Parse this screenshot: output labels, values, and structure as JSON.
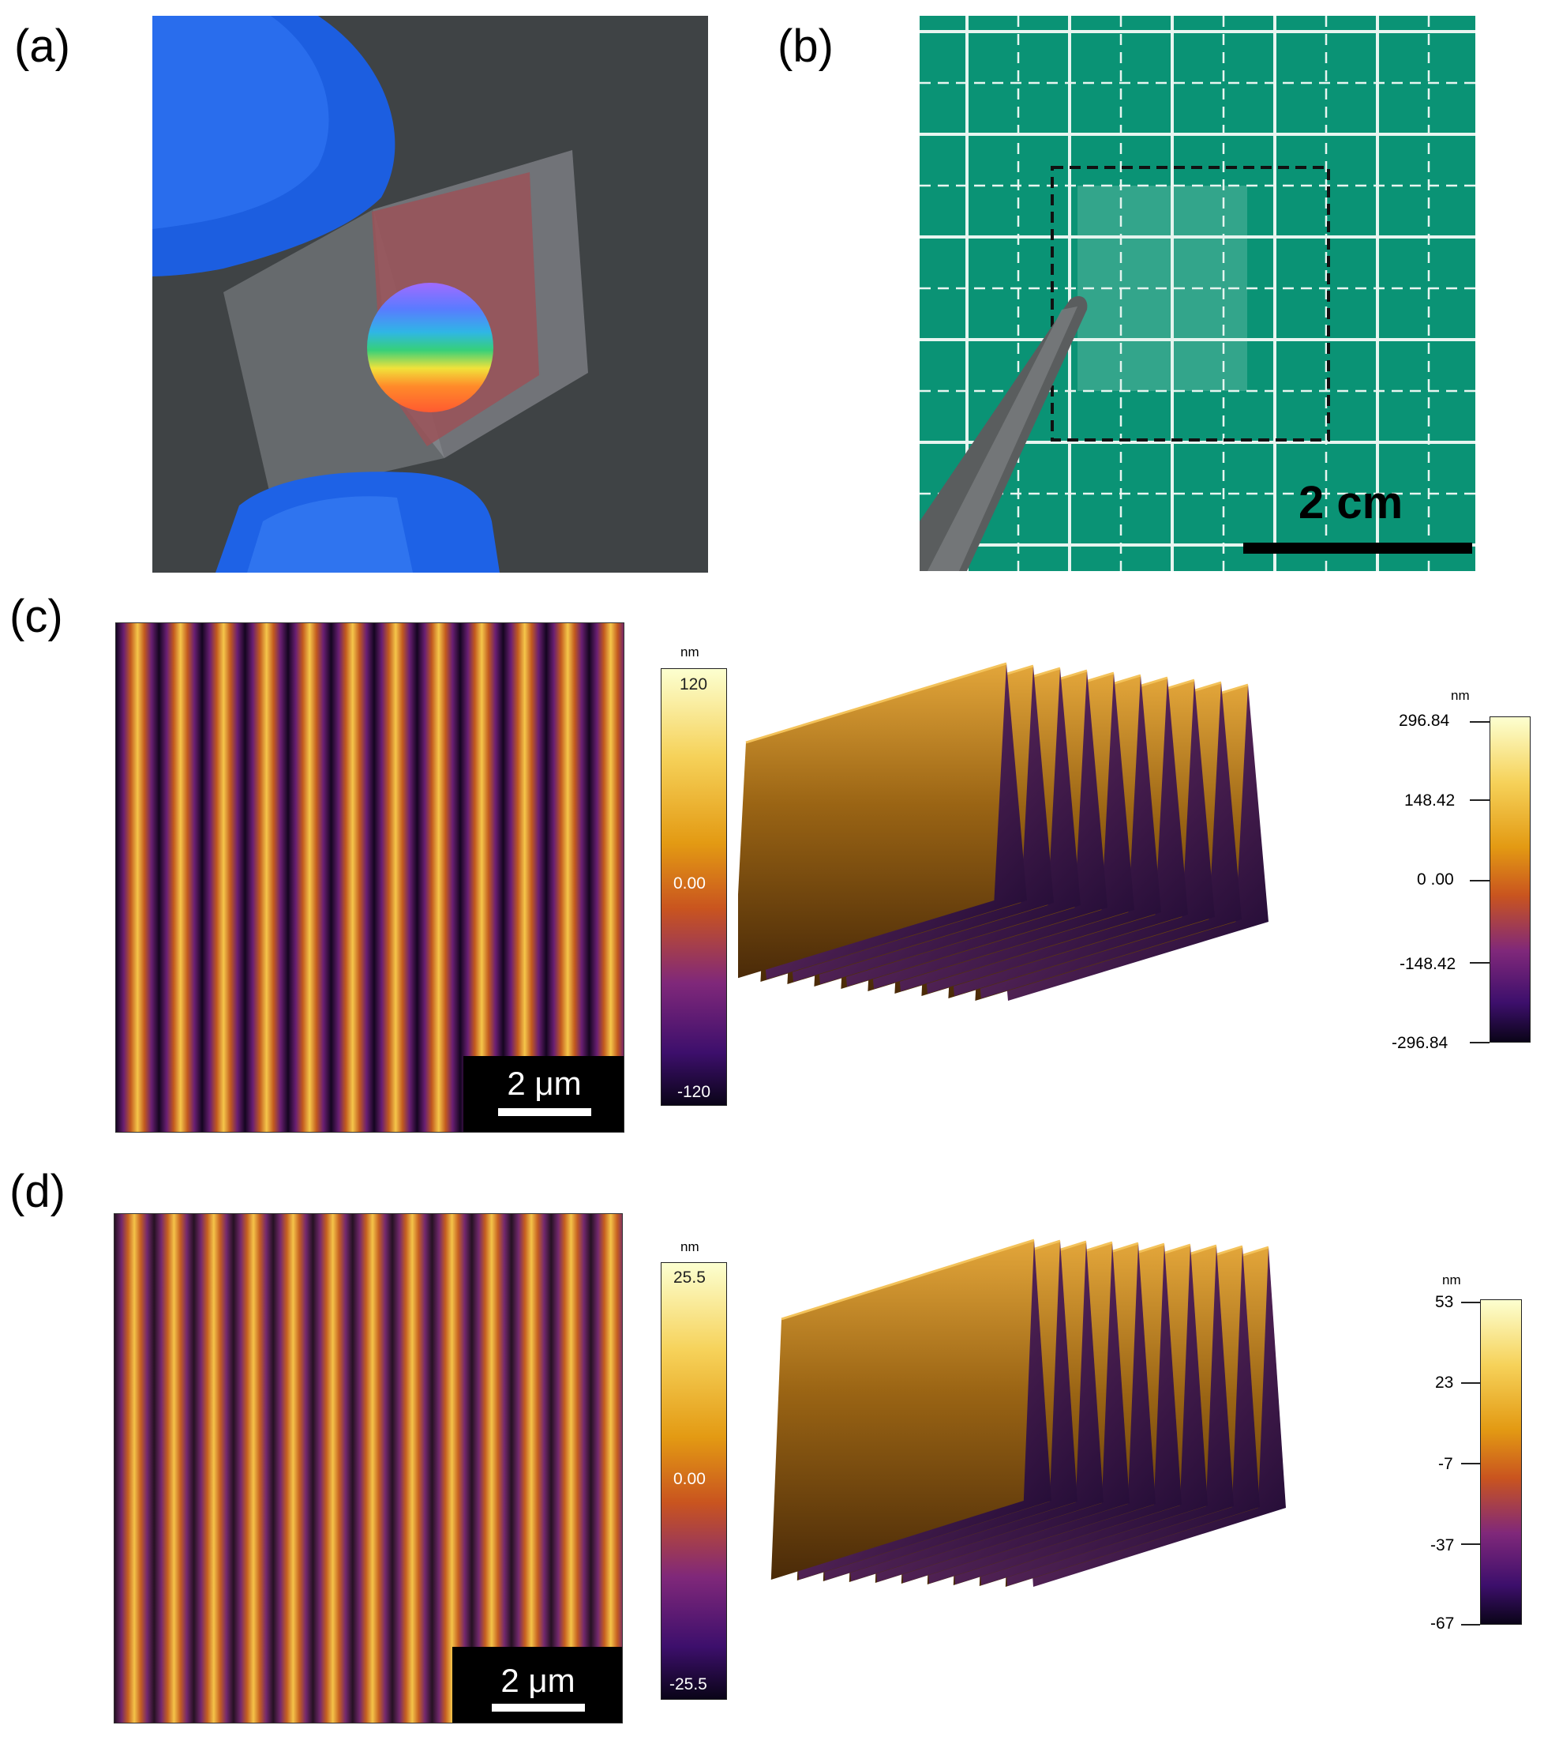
{
  "figure": {
    "panel_a": {
      "label": "(a)"
    },
    "panel_b": {
      "label": "(b)",
      "scale_bar": "2 cm"
    },
    "panel_c": {
      "label": "(c)",
      "scale_bar": "2 μm",
      "colorbar_2d": {
        "unit": "nm",
        "max": "120",
        "mid": "0.00",
        "min": "-120"
      },
      "colorbar_3d": {
        "unit": "nm",
        "ticks": [
          "296.84",
          "148.42",
          "0 .00",
          "-148.42",
          "-296.84"
        ]
      }
    },
    "panel_d": {
      "label": "(d)",
      "scale_bar": "2 μm",
      "colorbar_2d": {
        "unit": "nm",
        "max": "25.5",
        "mid": "0.00",
        "min": "-25.5"
      },
      "colorbar_3d": {
        "unit": "nm",
        "ticks": [
          "53",
          "23",
          "-7",
          "-37",
          "-67"
        ]
      }
    },
    "colormap": [
      "#0d0221",
      "#3b0f70",
      "#8c2981",
      "#de4968",
      "#f07f28",
      "#fbb61a",
      "#fcffa4"
    ]
  }
}
